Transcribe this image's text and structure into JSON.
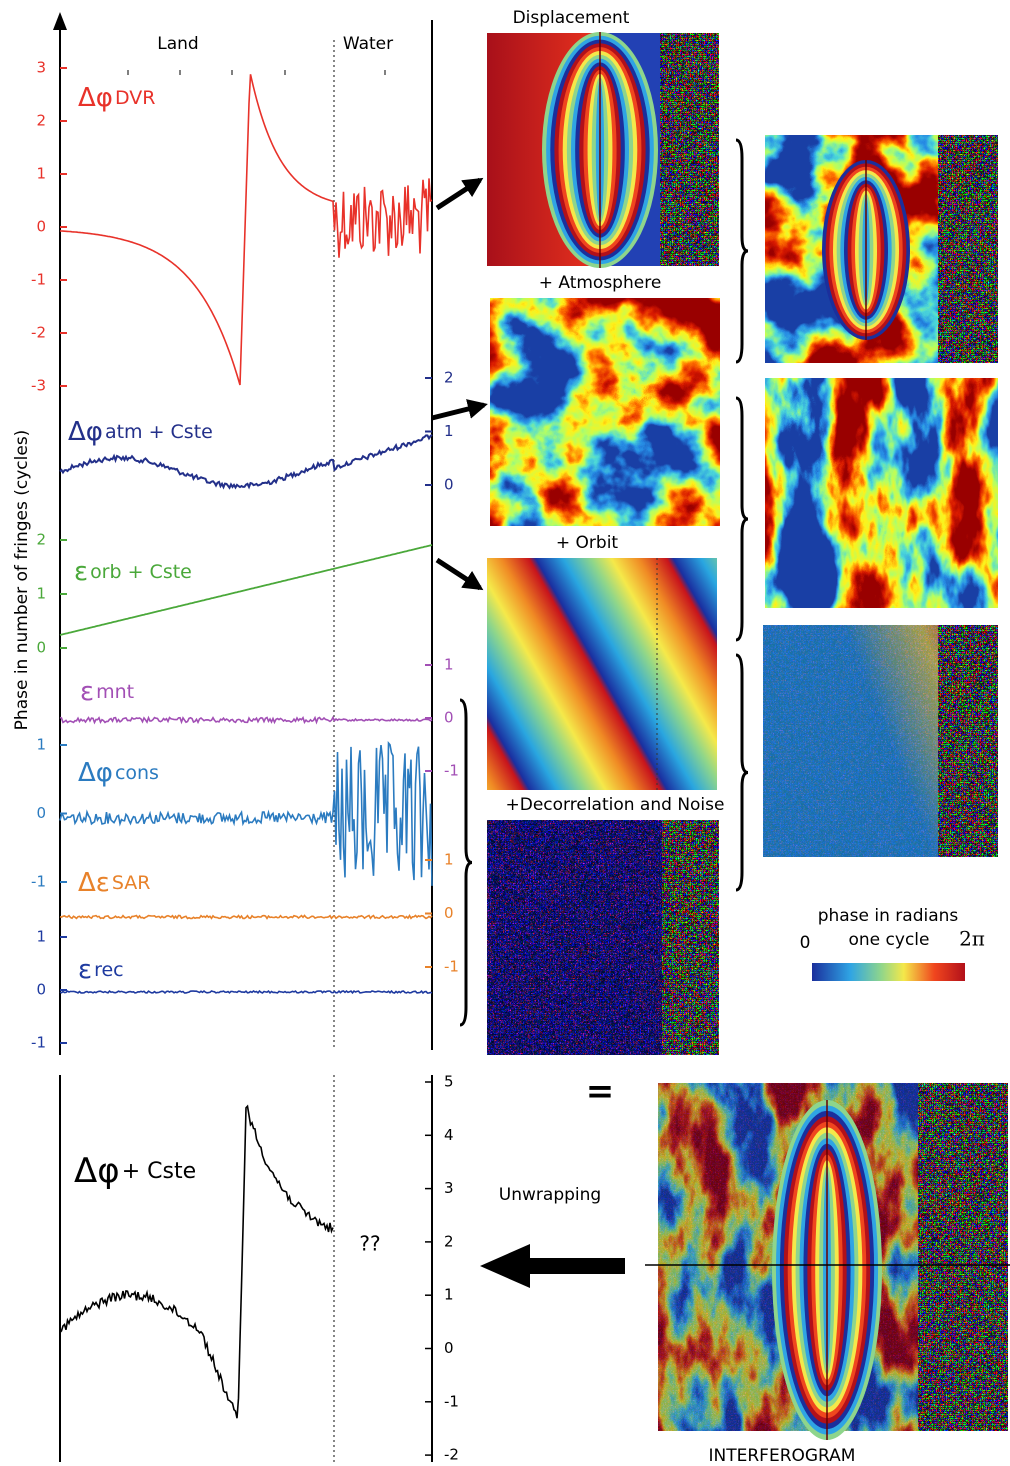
{
  "y_axis_title": "Phase in number of fringes (cycles)",
  "region_labels": [
    "Land",
    "Water"
  ],
  "components": [
    {
      "symbol": "Δφ",
      "sub": "DVR",
      "color": "#e8322a",
      "ticks": [
        3,
        2,
        1,
        0,
        -1,
        -2,
        -3
      ]
    },
    {
      "symbol": "Δφ",
      "sub": "atm + Cste",
      "color": "#23308a",
      "ticks": [
        2,
        1,
        0
      ]
    },
    {
      "symbol": "ε",
      "sub": "orb + Cste",
      "color": "#4aa83a",
      "ticks": [
        2,
        1,
        0
      ]
    },
    {
      "symbol": "ε",
      "sub": "mnt",
      "color": "#a24fb5",
      "ticks": [
        1,
        0,
        -1
      ]
    },
    {
      "symbol": "Δφ",
      "sub": "cons",
      "color": "#2b7bc0",
      "ticks": [
        1,
        0,
        -1
      ]
    },
    {
      "symbol": "Δε",
      "sub": "SAR",
      "color": "#e8822a",
      "ticks": [
        1,
        0,
        -1
      ]
    },
    {
      "symbol": "ε",
      "sub": "rec",
      "color": "#1e3aa0",
      "ticks": [
        1,
        0,
        -1
      ]
    }
  ],
  "result": {
    "symbol": "Δφ",
    "sub": "+ Cste",
    "ticks": [
      5,
      4,
      3,
      2,
      1,
      0,
      -1,
      -2
    ],
    "unknown": "??"
  },
  "images": {
    "displacement": "Displacement",
    "atmosphere": "+ Atmosphere",
    "orbit": "+ Orbit",
    "noise": "+Decorrelation and Noise"
  },
  "colorbar": {
    "title": "phase in radians",
    "caption": "one cycle",
    "min": "0",
    "max": "2π"
  },
  "equals": "=",
  "unwrapping": "Unwrapping",
  "interferogram": "INTERFEROGRAM"
}
